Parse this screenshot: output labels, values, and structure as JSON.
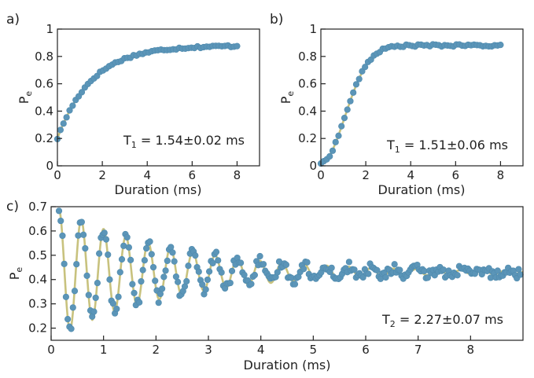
{
  "chart_data": [
    {
      "id": "a",
      "type": "scatter",
      "panel_label": "a)",
      "title": "",
      "xlabel": "Duration (ms)",
      "ylabel": "P",
      "ylabel_sub": "e",
      "xlim": [
        0,
        9
      ],
      "ylim": [
        0,
        1
      ],
      "xticks": [
        "0",
        "2",
        "4",
        "6",
        "8"
      ],
      "xtick_values": [
        0,
        2,
        4,
        6,
        8
      ],
      "yticks": [
        "0",
        "0.2",
        "0.4",
        "0.6",
        "0.8",
        "1"
      ],
      "ytick_values": [
        0,
        0.2,
        0.4,
        0.6,
        0.8,
        1
      ],
      "model": {
        "kind": "relax_up",
        "y0": 0.2,
        "A": 0.68,
        "tau": 1.54,
        "x_start": 0,
        "x_end": 8
      },
      "points": {
        "x_start": 0,
        "x_end": 8,
        "count": 60
      },
      "annotation": {
        "main": "T",
        "sub": "1",
        "rest": " = 1.54±0.02 ms"
      },
      "colors": {
        "points": "#5b95b8",
        "fit": "#c8c27e"
      }
    },
    {
      "id": "b",
      "type": "scatter",
      "panel_label": "b)",
      "title": "",
      "xlabel": "Duration (ms)",
      "ylabel": "P",
      "ylabel_sub": "e",
      "xlim": [
        0,
        9
      ],
      "ylim": [
        0,
        1
      ],
      "xticks": [
        "0",
        "2",
        "4",
        "6",
        "8"
      ],
      "xtick_values": [
        0,
        2,
        4,
        6,
        8
      ],
      "yticks": [
        "0",
        "0.2",
        "0.4",
        "0.6",
        "0.8",
        "1"
      ],
      "ytick_values": [
        0,
        0.2,
        0.4,
        0.6,
        0.8,
        1
      ],
      "model": {
        "kind": "sigmoid",
        "y0": 0.02,
        "A": 0.86,
        "tau": 1.51,
        "x_start": 0,
        "x_end": 8
      },
      "points": {
        "x_start": 0,
        "x_end": 8,
        "count": 62
      },
      "annotation": {
        "main": "T",
        "sub": "1",
        "rest": " = 1.51±0.06 ms"
      },
      "colors": {
        "points": "#5b95b8",
        "fit": "#c8c27e"
      }
    },
    {
      "id": "c",
      "type": "scatter",
      "panel_label": "c)",
      "title": "",
      "xlabel": "Duration (ms)",
      "ylabel": "P",
      "ylabel_sub": "e",
      "xlim": [
        0,
        9
      ],
      "ylim": [
        0.15,
        0.7
      ],
      "xticks": [
        "0",
        "1",
        "2",
        "3",
        "4",
        "5",
        "6",
        "7",
        "8"
      ],
      "xtick_values": [
        0,
        1,
        2,
        3,
        4,
        5,
        6,
        7,
        8
      ],
      "yticks": [
        "0.2",
        "0.3",
        "0.4",
        "0.5",
        "0.6",
        "0.7"
      ],
      "ytick_values": [
        0.2,
        0.3,
        0.4,
        0.5,
        0.6,
        0.7
      ],
      "model": {
        "kind": "ramsey",
        "offset": 0.43,
        "amp": 0.26,
        "T2": 2.27,
        "freq": 2.35,
        "x_start": 0.15,
        "x_end": 9
      },
      "points": {
        "x_start": 0.15,
        "x_end": 8.95,
        "count": 265
      },
      "annotation": {
        "main": "T",
        "sub": "2",
        "rest": " = 2.27±0.07 ms"
      },
      "colors": {
        "points": "#5b95b8",
        "fit": "#c8c27e"
      }
    }
  ]
}
